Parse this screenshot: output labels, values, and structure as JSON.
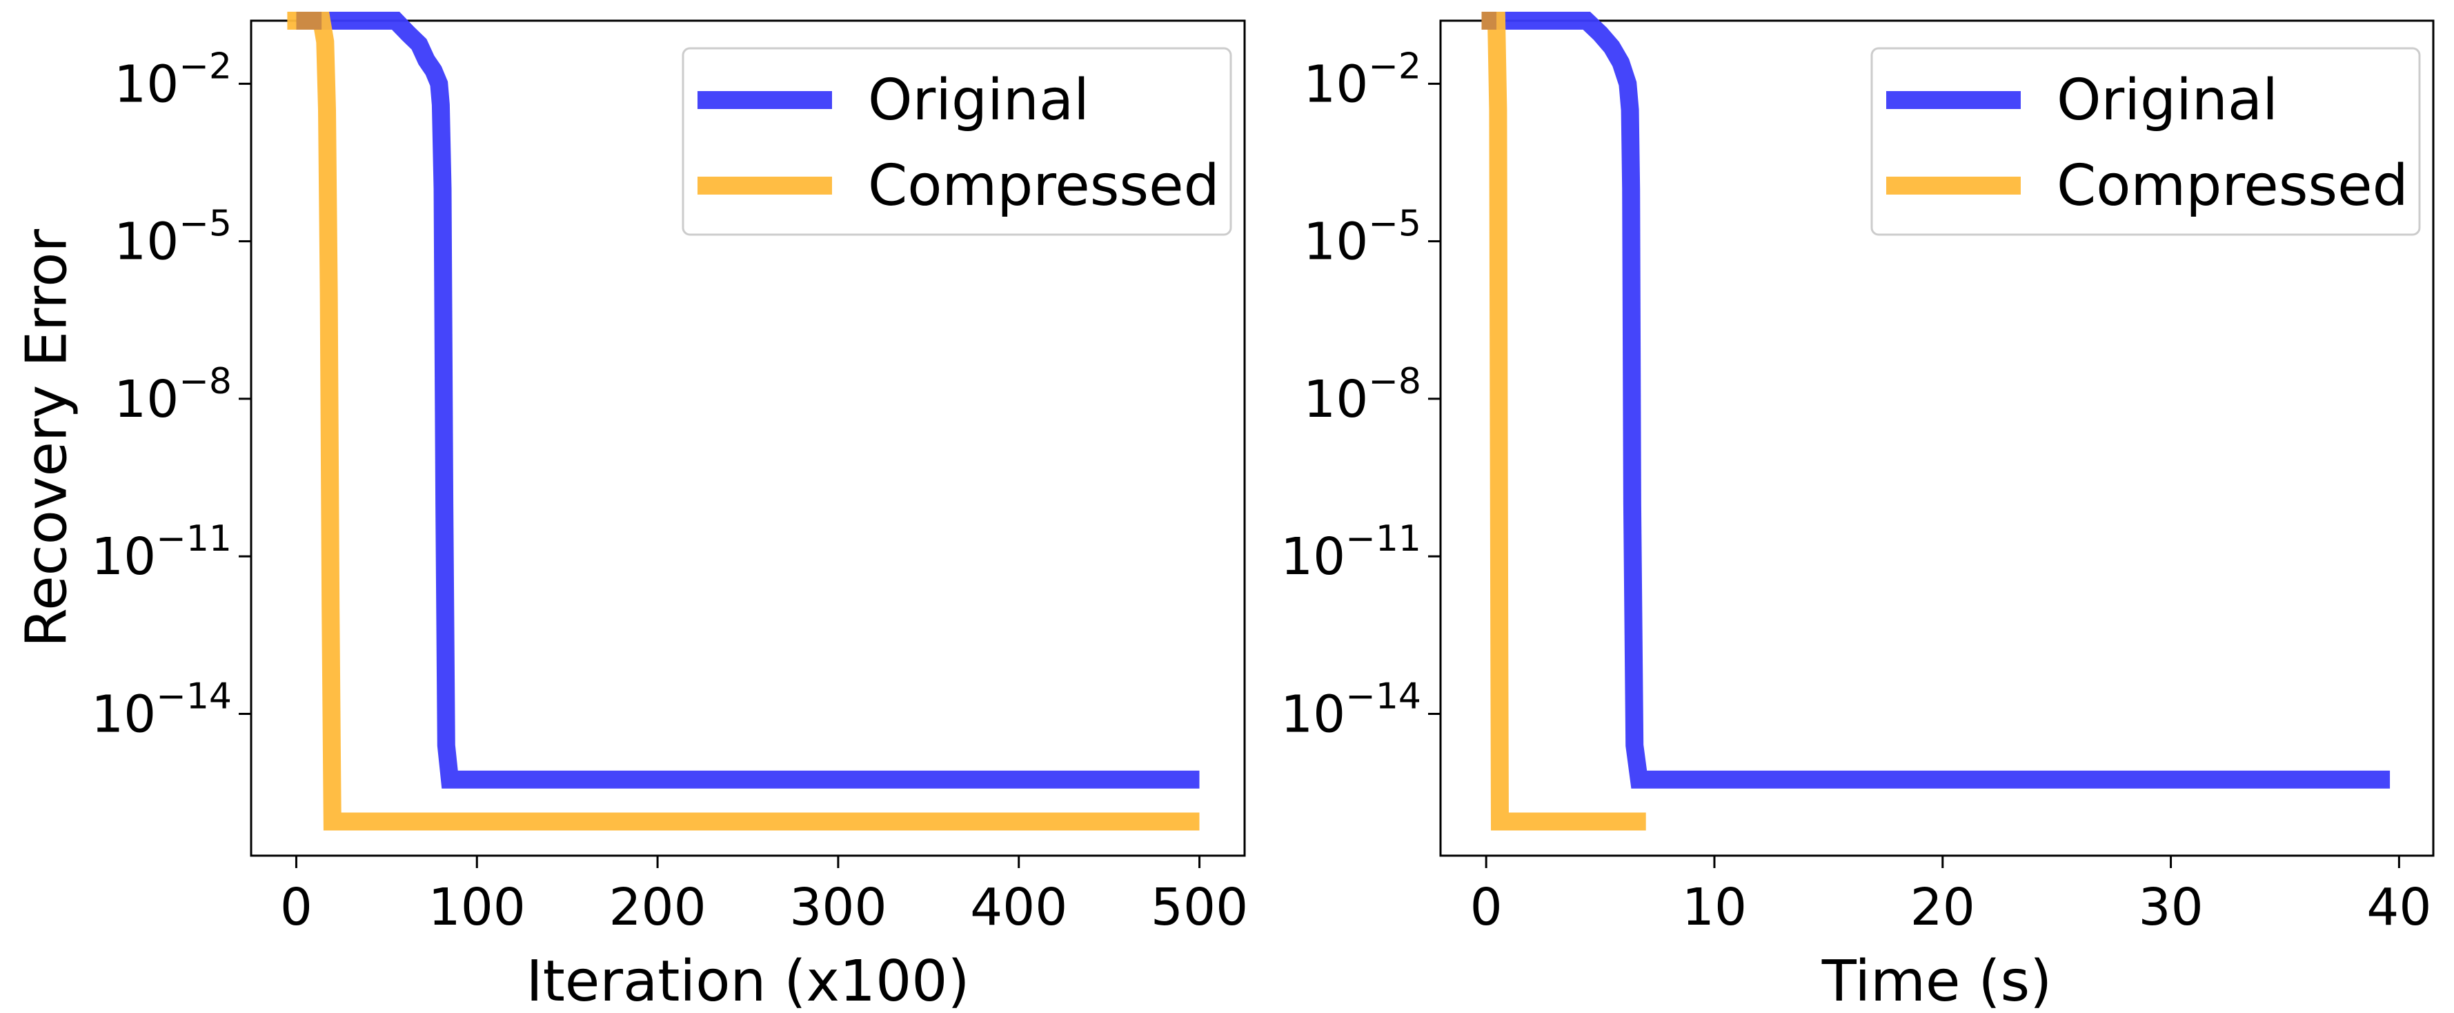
{
  "figure": {
    "shared_ylabel": "Recovery Error"
  },
  "colors": {
    "original": "#3b3bfa",
    "compressed": "#ffb93a",
    "overlap": "#cc8a44"
  },
  "chart_data": [
    {
      "type": "line",
      "xlabel": "Iteration (x100)",
      "ylabel": "Recovery Error",
      "yscale": "log",
      "xlim": [
        -25,
        525
      ],
      "ylim_exponents": [
        -16.7,
        -0.8
      ],
      "xticks": [
        0,
        100,
        200,
        300,
        400,
        500
      ],
      "xtick_labels": [
        "0",
        "100",
        "200",
        "300",
        "400",
        "500"
      ],
      "yticks_exponents": [
        -2,
        -5,
        -8,
        -11,
        -14
      ],
      "ytick_bases": [
        "10",
        "10",
        "10",
        "10",
        "10"
      ],
      "ytick_exponents": [
        "−2",
        "−5",
        "−8",
        "−11",
        "−14"
      ],
      "legend_location": "upper right",
      "grid": false,
      "series": [
        {
          "name": "Original",
          "color_key": "original",
          "log10_y_points": [
            [
              0,
              -0.8
            ],
            [
              55,
              -0.8
            ],
            [
              62,
              -1.05
            ],
            [
              68,
              -1.25
            ],
            [
              72,
              -1.55
            ],
            [
              76,
              -1.75
            ],
            [
              79,
              -2.0
            ],
            [
              80,
              -2.4
            ],
            [
              81,
              -4.0
            ],
            [
              82,
              -10.0
            ],
            [
              83,
              -14.6
            ],
            [
              85,
              -15.25
            ],
            [
              100,
              -15.25
            ],
            [
              500,
              -15.25
            ]
          ]
        },
        {
          "name": "Compressed",
          "color_key": "compressed",
          "log10_y_points": [
            [
              -5,
              -0.8
            ],
            [
              14,
              -0.8
            ],
            [
              16,
              -1.2
            ],
            [
              17,
              -2.5
            ],
            [
              18,
              -6.0
            ],
            [
              19,
              -12.0
            ],
            [
              20,
              -16.05
            ],
            [
              30,
              -16.05
            ],
            [
              500,
              -16.05
            ]
          ]
        }
      ]
    },
    {
      "type": "line",
      "xlabel": "Time (s)",
      "ylabel": "",
      "yscale": "log",
      "xlim": [
        -2,
        41.5
      ],
      "ylim_exponents": [
        -16.7,
        -0.8
      ],
      "xticks": [
        0,
        10,
        20,
        30,
        40
      ],
      "xtick_labels": [
        "0",
        "10",
        "20",
        "30",
        "40"
      ],
      "yticks_exponents": [
        -2,
        -5,
        -8,
        -11,
        -14
      ],
      "ytick_bases": [
        "10",
        "10",
        "10",
        "10",
        "10"
      ],
      "ytick_exponents": [
        "−2",
        "−5",
        "−8",
        "−11",
        "−14"
      ],
      "legend_location": "upper right",
      "grid": false,
      "series": [
        {
          "name": "Original",
          "color_key": "original",
          "log10_y_points": [
            [
              -0.2,
              -0.8
            ],
            [
              4.4,
              -0.8
            ],
            [
              5.0,
              -1.05
            ],
            [
              5.5,
              -1.3
            ],
            [
              5.9,
              -1.6
            ],
            [
              6.2,
              -2.0
            ],
            [
              6.3,
              -2.5
            ],
            [
              6.35,
              -4.0
            ],
            [
              6.4,
              -10.0
            ],
            [
              6.5,
              -14.6
            ],
            [
              6.7,
              -15.25
            ],
            [
              8.0,
              -15.25
            ],
            [
              39.6,
              -15.25
            ]
          ]
        },
        {
          "name": "Compressed",
          "color_key": "compressed",
          "log10_y_points": [
            [
              -0.2,
              -0.8
            ],
            [
              0.45,
              -0.8
            ],
            [
              0.52,
              -2.5
            ],
            [
              0.55,
              -8.0
            ],
            [
              0.58,
              -13.0
            ],
            [
              0.6,
              -16.05
            ],
            [
              1.0,
              -16.05
            ],
            [
              7.0,
              -16.05
            ]
          ]
        }
      ]
    }
  ]
}
